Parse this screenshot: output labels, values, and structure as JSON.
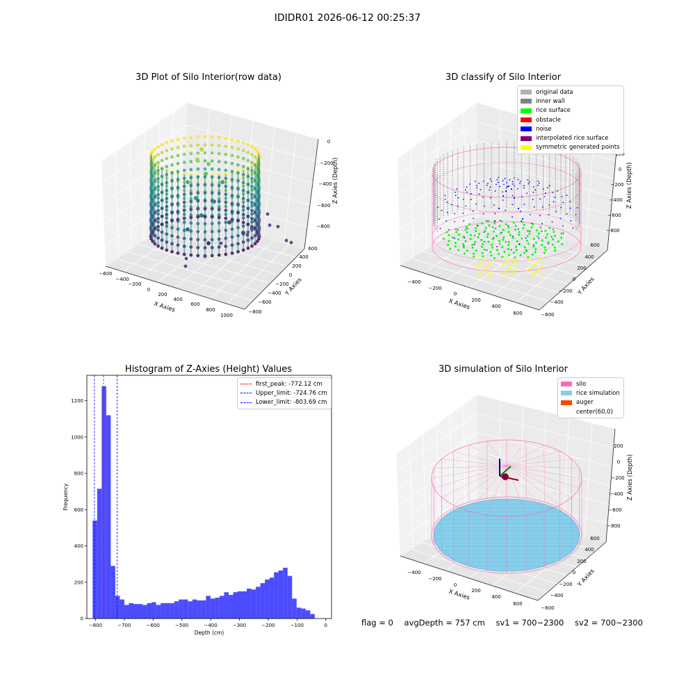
{
  "window": {
    "title": "IDIDR01 2026-06-12 00:25:37"
  },
  "chart_data": [
    {
      "type": "scatter",
      "title": "3D Plot of Silo Interior(row data)",
      "xlabel": "X Axies",
      "ylabel": "Y Axies",
      "zlabel": "Z Axies (Depth)",
      "xticks": [
        "−600",
        "−400",
        "−200",
        "0",
        "200",
        "400",
        "600",
        "800",
        "1000"
      ],
      "yticks": [
        "−800",
        "−600",
        "−400",
        "−200",
        "0",
        "200",
        "400",
        "600"
      ],
      "zticks": [
        "0",
        "−200",
        "−400",
        "−600",
        "−800"
      ],
      "colormap": "viridis",
      "description_values": {
        "wall_radius": 330,
        "depth_range": [
          -800,
          0
        ]
      }
    },
    {
      "type": "scatter",
      "title": "3D classify of Silo Interior",
      "xlabel": "X Axies",
      "ylabel": "Y Axies",
      "zlabel": "Z Axies (Depth)",
      "xticks": [
        "−400",
        "−200",
        "0",
        "200",
        "400",
        "600"
      ],
      "yticks": [
        "−600",
        "−400",
        "−200",
        "0",
        "200",
        "400",
        "600"
      ],
      "zticks": [
        "200",
        "0",
        "−200",
        "−400",
        "−600",
        "−800"
      ],
      "legend": [
        {
          "name": "original data",
          "color": "#b3b3b3"
        },
        {
          "name": "inner wall",
          "color": "#808080"
        },
        {
          "name": "rice surface",
          "color": "#00ff00"
        },
        {
          "name": "obstacle",
          "color": "#ff0000"
        },
        {
          "name": "noise",
          "color": "#0000ff"
        },
        {
          "name": "interpolated rice surface",
          "color": "#800080"
        },
        {
          "name": "symmetric generated points",
          "color": "#ffff00"
        }
      ]
    },
    {
      "type": "bar",
      "title": "Histogram of Z-Axies (Height) Values",
      "xlabel": "Depth (cm)",
      "ylabel": "Frequency",
      "xlim": [
        -830,
        20
      ],
      "ylim": [
        0,
        1340
      ],
      "xticks": [
        -800,
        -700,
        -600,
        -500,
        -400,
        -300,
        -200,
        -100,
        0
      ],
      "yticks": [
        0,
        200,
        400,
        600,
        800,
        1000,
        1200
      ],
      "bin_width": 15.75,
      "bin_start": -810,
      "values": [
        540,
        715,
        1280,
        1120,
        290,
        125,
        105,
        75,
        85,
        80,
        80,
        75,
        85,
        90,
        75,
        85,
        85,
        85,
        95,
        105,
        105,
        95,
        105,
        100,
        100,
        125,
        110,
        115,
        125,
        145,
        130,
        145,
        150,
        150,
        165,
        160,
        175,
        195,
        215,
        225,
        255,
        265,
        280,
        235,
        110,
        60,
        55,
        45,
        25
      ],
      "color": "#0000ff",
      "lines": [
        {
          "label": "first_peak: -772.12 cm",
          "x": -772.12,
          "color": "#ff0000"
        },
        {
          "label": "Upper_limit: -724.76 cm",
          "x": -724.76,
          "color": "#0000ff"
        },
        {
          "label": "Lower_limit: -803.69 cm",
          "x": -803.69,
          "color": "#0000ff"
        }
      ]
    },
    {
      "type": "scatter",
      "title": "3D simulation of Silo Interior",
      "xlabel": "X Axies",
      "ylabel": "Y Axies",
      "zlabel": "Z Axies (Depth)",
      "xticks": [
        "−400",
        "−200",
        "0",
        "200",
        "400",
        "600"
      ],
      "yticks": [
        "−600",
        "−400",
        "−200",
        "0",
        "200",
        "400",
        "600"
      ],
      "zticks": [
        "200",
        "0",
        "−200",
        "−400",
        "−600",
        "−800"
      ],
      "legend": [
        {
          "name": "silo",
          "color": "#ff69b4"
        },
        {
          "name": "rice simulation",
          "color": "#87ceeb"
        },
        {
          "name": "auger",
          "color": "#ff4500"
        },
        {
          "name": "center(60,0)",
          "color": "#ffffff"
        }
      ]
    }
  ],
  "status": {
    "flag": "flag = 0",
    "avg": "avgDepth = 757 cm",
    "sv1": "sv1 = 700~2300",
    "sv2": "sv2 = 700~2300"
  }
}
